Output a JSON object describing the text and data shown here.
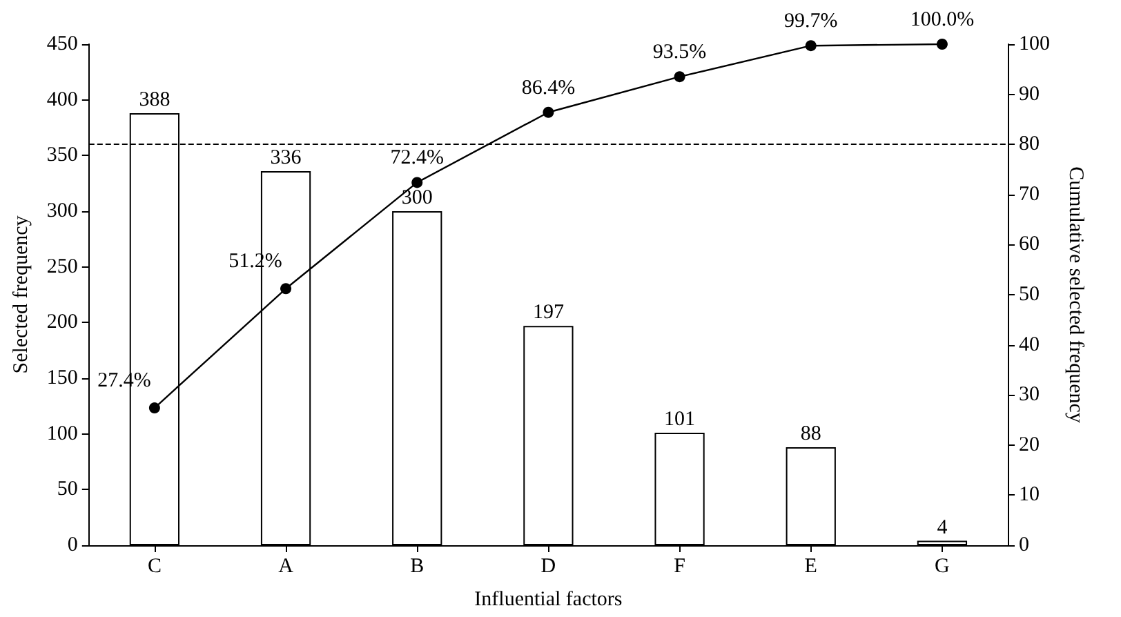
{
  "chart_data": {
    "type": "bar",
    "xlabel": "Influential factors",
    "ylabel": "Selected frequency",
    "y2label": "Cumulative selected frequency",
    "categories": [
      "C",
      "A",
      "B",
      "D",
      "F",
      "E",
      "G"
    ],
    "series": [
      {
        "color": "#ffffff",
        "values": [
          388,
          336,
          300,
          197,
          101,
          88,
          4
        ],
        "value_labels": [
          "388",
          "336",
          "300",
          "197",
          "101",
          "88",
          "4"
        ]
      },
      {
        "type": "line",
        "axis": "y2",
        "color": "#000000",
        "values": [
          27.4,
          51.2,
          72.4,
          86.4,
          93.5,
          99.7,
          100.0
        ],
        "value_labels": [
          "27.4%",
          "51.2%",
          "72.4%",
          "86.4%",
          "93.5%",
          "99.7%",
          "100.0%"
        ]
      }
    ],
    "ylim": [
      0,
      450
    ],
    "yticks": [
      0,
      50,
      100,
      150,
      200,
      250,
      300,
      350,
      400,
      450
    ],
    "y2lim": [
      0,
      100
    ],
    "y2ticks": [
      0,
      10,
      20,
      30,
      40,
      50,
      60,
      70,
      80,
      90,
      100
    ],
    "ref_lines": [
      {
        "axis": "y2",
        "value": 80,
        "color": "#000000",
        "line_style": "dashed"
      }
    ],
    "grid": false,
    "marker": "circle",
    "line_style": "solid"
  }
}
